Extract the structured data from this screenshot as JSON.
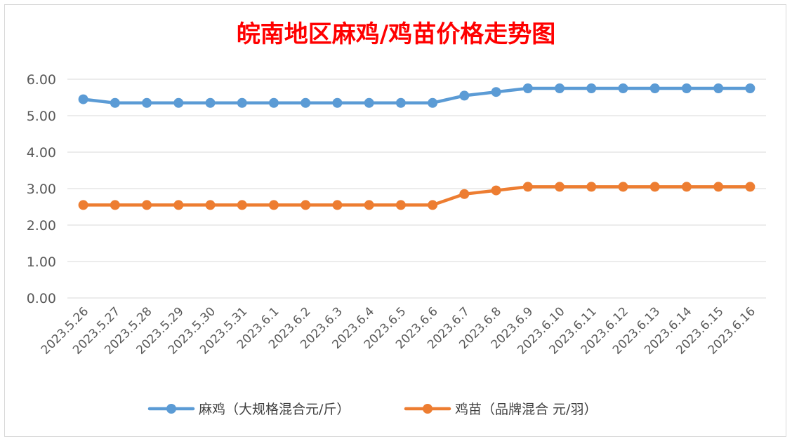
{
  "chart_data": {
    "type": "line",
    "title": "皖南地区麻鸡/鸡苗价格走势图",
    "categories": [
      "2023.5.26",
      "2023.5.27",
      "2023.5.28",
      "2023.5.29",
      "2023.5.30",
      "2023.5.31",
      "2023.6.1",
      "2023.6.2",
      "2023.6.3",
      "2023.6.4",
      "2023.6.5",
      "2023.6.6",
      "2023.6.7",
      "2023.6.8",
      "2023.6.9",
      "2023.6.10",
      "2023.6.11",
      "2023.6.12",
      "2023.6.13",
      "2023.6.14",
      "2023.6.15",
      "2023.6.16"
    ],
    "yticks": [
      "0.00",
      "1.00",
      "2.00",
      "3.00",
      "4.00",
      "5.00",
      "6.00"
    ],
    "ylim": [
      0,
      6
    ],
    "grid": true,
    "legend_position": "bottom",
    "series": [
      {
        "name": "麻鸡（大规格混合元/斤）",
        "color": "#5b9bd5",
        "values": [
          5.45,
          5.35,
          5.35,
          5.35,
          5.35,
          5.35,
          5.35,
          5.35,
          5.35,
          5.35,
          5.35,
          5.35,
          5.55,
          5.65,
          5.75,
          5.75,
          5.75,
          5.75,
          5.75,
          5.75,
          5.75,
          5.75
        ]
      },
      {
        "name": "鸡苗（品牌混合 元/羽）",
        "color": "#ed7d31",
        "values": [
          2.55,
          2.55,
          2.55,
          2.55,
          2.55,
          2.55,
          2.55,
          2.55,
          2.55,
          2.55,
          2.55,
          2.55,
          2.85,
          2.95,
          3.05,
          3.05,
          3.05,
          3.05,
          3.05,
          3.05,
          3.05,
          3.05
        ]
      }
    ]
  }
}
